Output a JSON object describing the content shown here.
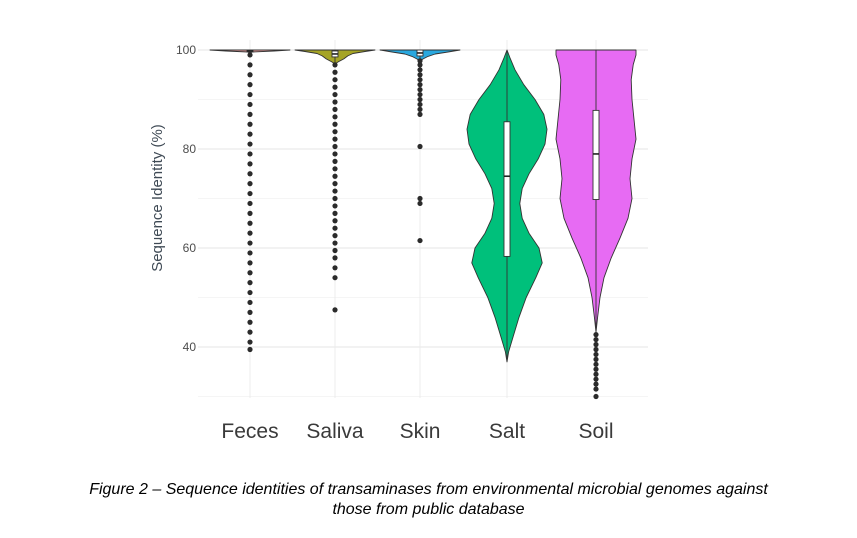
{
  "chart_data": {
    "type": "violin",
    "ylabel": "Sequence Identity (%)",
    "ylim": [
      30,
      100
    ],
    "yticks": [
      40,
      60,
      80,
      100
    ],
    "grid": true,
    "legend": "none",
    "categories": [
      "Feces",
      "Saliva",
      "Skin",
      "Salt",
      "Soil"
    ],
    "series": [
      {
        "category": "Feces",
        "color": "#f4a4a4",
        "min": 39.5,
        "q1": 99.6,
        "median": 99.8,
        "q3": 100,
        "max": 100,
        "density_y": [
          99.3,
          99.6,
          99.8,
          100
        ],
        "density_w": [
          0.0,
          0.05,
          0.6,
          1.0
        ],
        "outliers": [
          99,
          97,
          95,
          93,
          91,
          89,
          87,
          85,
          83,
          81,
          79,
          77,
          75,
          73,
          71,
          69,
          67,
          65,
          63,
          61,
          59,
          57,
          55,
          53,
          51,
          49,
          47,
          45,
          43,
          41,
          39.5
        ]
      },
      {
        "category": "Saliva",
        "color": "#a5a425",
        "min": 47.5,
        "q1": 98.6,
        "median": 99.2,
        "q3": 99.8,
        "max": 100,
        "density_y": [
          97.2,
          97.6,
          98.2,
          98.8,
          99.3,
          99.7,
          100
        ],
        "density_w": [
          0.0,
          0.08,
          0.22,
          0.32,
          0.45,
          0.75,
          1.0
        ],
        "outliers": [
          97,
          95.5,
          94,
          92.5,
          91,
          89.5,
          88,
          86.5,
          85,
          83.5,
          82,
          80.5,
          79,
          77.5,
          76,
          74.5,
          73,
          71.5,
          70,
          68.5,
          67,
          65.5,
          64,
          62.5,
          61,
          59.5,
          58,
          56,
          54,
          47.5
        ]
      },
      {
        "category": "Skin",
        "color": "#2aa8df",
        "min": 61.5,
        "q1": 98.8,
        "median": 99.4,
        "q3": 100,
        "max": 100,
        "density_y": [
          97.8,
          98.2,
          98.7,
          99.2,
          99.6,
          100
        ],
        "density_w": [
          0.0,
          0.08,
          0.2,
          0.38,
          0.7,
          1.0
        ],
        "outliers": [
          97.8,
          97,
          96,
          95,
          94,
          93,
          92,
          91,
          90,
          89,
          88,
          87,
          80.5,
          70,
          69,
          61.5
        ]
      },
      {
        "category": "Salt",
        "color": "#00c07b",
        "min": 37,
        "q1": 58.3,
        "median": 74.5,
        "q3": 85.5,
        "max": 100,
        "density_y": [
          37,
          39,
          42,
          46,
          50,
          54,
          57,
          60,
          63,
          66,
          69,
          72,
          75,
          78,
          81,
          84,
          87,
          90,
          93,
          96,
          98.5,
          100
        ],
        "density_w": [
          0.0,
          0.04,
          0.15,
          0.3,
          0.48,
          0.72,
          0.88,
          0.8,
          0.55,
          0.38,
          0.32,
          0.38,
          0.55,
          0.78,
          0.95,
          1.0,
          0.92,
          0.7,
          0.42,
          0.2,
          0.07,
          0.0
        ]
      },
      {
        "category": "Soil",
        "color": "#e76bf3",
        "min": 30,
        "q1": 69.8,
        "median": 79,
        "q3": 87.8,
        "max": 100,
        "density_y": [
          43,
          46,
          50,
          54,
          58,
          62,
          66,
          70,
          74,
          78,
          82,
          86,
          90,
          94,
          97,
          99,
          100
        ],
        "density_w": [
          0.0,
          0.04,
          0.1,
          0.2,
          0.38,
          0.6,
          0.8,
          0.9,
          0.85,
          0.9,
          1.0,
          0.95,
          0.9,
          0.88,
          0.93,
          1.0,
          1.0
        ],
        "outliers": [
          42.5,
          41.5,
          40.5,
          39.5,
          38.5,
          37.5,
          36.5,
          35.5,
          34.5,
          33.5,
          32.5,
          31.5,
          30
        ]
      }
    ]
  },
  "caption": {
    "line1": "Figure 2 – Sequence identities of transaminases from environmental microbial genomes against",
    "line2": "those from public database"
  }
}
